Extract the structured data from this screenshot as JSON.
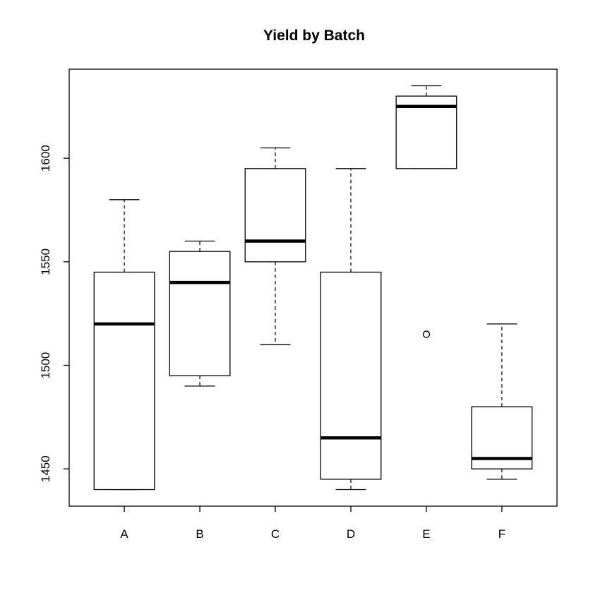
{
  "chart_data": {
    "type": "boxplot",
    "title": "Yield by Batch",
    "xlabel": "",
    "ylabel": "",
    "ylim": [
      1432,
      1643
    ],
    "yticks": [
      1450,
      1500,
      1550,
      1600
    ],
    "grid": false,
    "categories": [
      "A",
      "B",
      "C",
      "D",
      "E",
      "F"
    ],
    "boxes": [
      {
        "category": "A",
        "whisker_low": 1440,
        "q1": 1440,
        "median": 1520,
        "q3": 1545,
        "whisker_high": 1580,
        "outliers": []
      },
      {
        "category": "B",
        "whisker_low": 1490,
        "q1": 1495,
        "median": 1540,
        "q3": 1555,
        "whisker_high": 1560,
        "outliers": []
      },
      {
        "category": "C",
        "whisker_low": 1510,
        "q1": 1550,
        "median": 1560,
        "q3": 1595,
        "whisker_high": 1605,
        "outliers": []
      },
      {
        "category": "D",
        "whisker_low": 1440,
        "q1": 1445,
        "median": 1465,
        "q3": 1545,
        "whisker_high": 1595,
        "outliers": []
      },
      {
        "category": "E",
        "whisker_low": 1595,
        "q1": 1595,
        "median": 1625,
        "q3": 1630,
        "whisker_high": 1635,
        "outliers": [
          1515
        ]
      },
      {
        "category": "F",
        "whisker_low": 1445,
        "q1": 1450,
        "median": 1455,
        "q3": 1480,
        "whisker_high": 1520,
        "outliers": []
      }
    ]
  }
}
